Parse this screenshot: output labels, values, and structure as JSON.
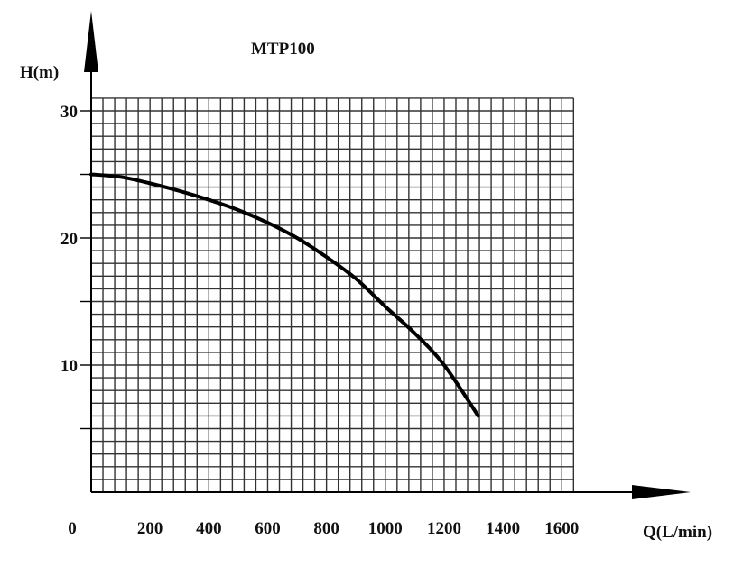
{
  "chart_data": {
    "type": "line",
    "title": "MTP100",
    "xlabel": "Q(L/min)",
    "ylabel": "H(m)",
    "xlim": [
      0,
      1640
    ],
    "ylim": [
      0,
      31
    ],
    "x_ticks": [
      0,
      200,
      400,
      600,
      800,
      1000,
      1200,
      1400,
      1600
    ],
    "x_tick_labels": [
      "0",
      "200",
      "400",
      "600",
      "800",
      "1000",
      "1200",
      "1400",
      "1600"
    ],
    "y_ticks": [
      10,
      20,
      30
    ],
    "y_tick_labels": [
      "10",
      "20",
      "30"
    ],
    "grid": true,
    "grid_x_step": 40,
    "grid_y_step": 1,
    "series": [
      {
        "name": "MTP100",
        "color": "#000000",
        "x": [
          0,
          100,
          200,
          300,
          400,
          500,
          600,
          700,
          800,
          900,
          1000,
          1100,
          1200,
          1316
        ],
        "y": [
          25.0,
          24.8,
          24.3,
          23.7,
          23.0,
          22.2,
          21.2,
          20.0,
          18.5,
          16.8,
          14.6,
          12.5,
          10.0,
          6.0
        ]
      }
    ]
  }
}
